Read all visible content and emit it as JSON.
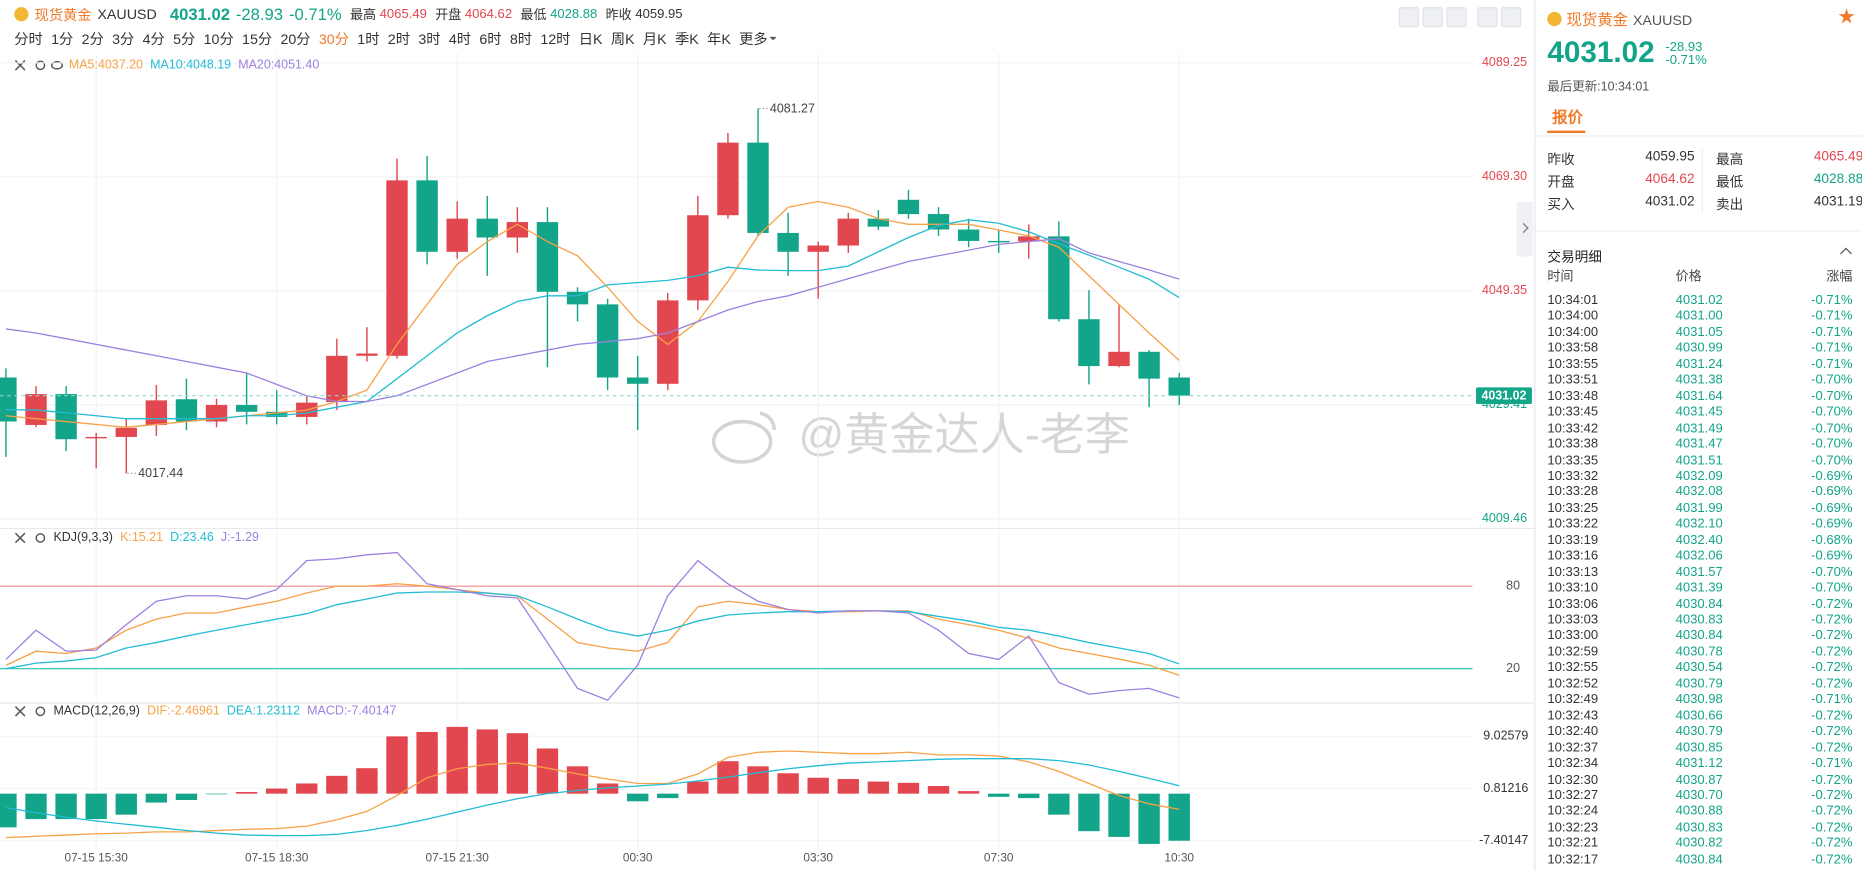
{
  "header": {
    "symbol_name": "现货黄金",
    "symbol": "XAUUSD",
    "price": "4031.02",
    "change": "-28.93",
    "change_pct": "-0.71%",
    "stats": [
      {
        "label": "最高",
        "value": "4065.49",
        "tone": "up"
      },
      {
        "label": "开盘",
        "value": "4064.62",
        "tone": "up"
      },
      {
        "label": "最低",
        "value": "4028.88",
        "tone": "down"
      },
      {
        "label": "昨收",
        "value": "4059.95",
        "tone": "flat"
      }
    ]
  },
  "timeframes": [
    {
      "label": "分时"
    },
    {
      "label": "1分"
    },
    {
      "label": "2分"
    },
    {
      "label": "3分"
    },
    {
      "label": "4分"
    },
    {
      "label": "5分"
    },
    {
      "label": "10分"
    },
    {
      "label": "15分"
    },
    {
      "label": "20分"
    },
    {
      "label": "30分",
      "active": true
    },
    {
      "label": "1时"
    },
    {
      "label": "2时"
    },
    {
      "label": "3时"
    },
    {
      "label": "4时"
    },
    {
      "label": "6时"
    },
    {
      "label": "8时"
    },
    {
      "label": "12时"
    },
    {
      "label": "日K"
    },
    {
      "label": "周K"
    },
    {
      "label": "月K"
    },
    {
      "label": "季K"
    },
    {
      "label": "年K"
    },
    {
      "label": "更多",
      "dropdown": true
    }
  ],
  "watermark": "@黄金达人-老李",
  "chart": {
    "colors": {
      "up": "#e2474f",
      "down": "#13a589"
    },
    "times": [
      null,
      null,
      null,
      "07-15 15:30",
      null,
      null,
      null,
      null,
      null,
      "07-15 18:30",
      null,
      null,
      null,
      null,
      null,
      "07-15 21:30",
      null,
      null,
      null,
      null,
      null,
      "00:30",
      null,
      null,
      null,
      null,
      null,
      "03:30",
      null,
      null,
      null,
      null,
      null,
      "07:30",
      null,
      null,
      null,
      null,
      null,
      "10:30"
    ],
    "price": {
      "ylim": [
        4007.79,
        4090.91
      ],
      "yticks": [
        4089.25,
        {
          "value": 4069.3,
          "label": "4069.30"
        },
        4049.35,
        4029.41,
        4009.46
      ],
      "candles": [
        [
          4034.2,
          4035.8,
          4020.3,
          4026.5
        ],
        [
          4025.9,
          4032.7,
          4025.5,
          4031.3
        ],
        [
          4031.3,
          4032.7,
          4021.3,
          4023.4
        ],
        [
          4023.6,
          4024.5,
          4018.3,
          4023.8
        ],
        [
          4023.8,
          4027.0,
          4017.44,
          4025.4
        ],
        [
          4025.9,
          4032.9,
          4024.0,
          4030.2
        ],
        [
          4030.4,
          4034.0,
          4025.0,
          4026.5
        ],
        [
          4026.5,
          4030.5,
          4025.5,
          4029.4
        ],
        [
          4029.4,
          4035.0,
          4026.0,
          4028.2
        ],
        [
          4028.2,
          4032.0,
          4026.0,
          4027.3
        ],
        [
          4027.3,
          4031.0,
          4026.0,
          4029.8
        ],
        [
          4029.9,
          4041.0,
          4028.5,
          4038.0
        ],
        [
          4038.0,
          4043.0,
          4037.0,
          4038.4
        ],
        [
          4038.0,
          4072.5,
          4037.5,
          4068.7
        ],
        [
          4068.7,
          4073.0,
          4054.0,
          4056.2
        ],
        [
          4056.2,
          4065.0,
          4055.0,
          4062.0
        ],
        [
          4062.0,
          4066.0,
          4052.0,
          4058.7
        ],
        [
          4058.7,
          4064.0,
          4056.0,
          4061.4
        ],
        [
          4061.4,
          4064.0,
          4036.0,
          4049.2
        ],
        [
          4049.2,
          4050.0,
          4044.0,
          4047.0
        ],
        [
          4047.0,
          4048.0,
          4032.0,
          4034.2
        ],
        [
          4034.2,
          4038.0,
          4025.0,
          4033.1
        ],
        [
          4033.1,
          4049.0,
          4032.0,
          4047.7
        ],
        [
          4047.7,
          4066.0,
          4046.0,
          4062.6
        ],
        [
          4062.6,
          4077.0,
          4062.0,
          4075.3
        ],
        [
          4075.3,
          4081.27,
          4059.0,
          4059.5
        ],
        [
          4059.5,
          4063.0,
          4052.0,
          4056.2
        ],
        [
          4056.2,
          4058.0,
          4048.0,
          4057.3
        ],
        [
          4057.3,
          4063.0,
          4056.0,
          4062.0
        ],
        [
          4062.0,
          4063.5,
          4060.0,
          4060.6
        ],
        [
          4065.3,
          4067.0,
          4062.0,
          4062.8
        ],
        [
          4062.8,
          4064.0,
          4059.0,
          4060.1
        ],
        [
          4060.1,
          4062.0,
          4057.0,
          4058.1
        ],
        [
          4058.1,
          4060.0,
          4056.0,
          4058.0
        ],
        [
          4058.0,
          4061.0,
          4055.0,
          4058.9
        ],
        [
          4058.9,
          4061.5,
          4044.0,
          4044.4
        ],
        [
          4044.4,
          4049.5,
          4033.0,
          4036.2
        ],
        [
          4036.2,
          4047.0,
          4036.0,
          4038.7
        ],
        [
          4038.7,
          4039.0,
          4029.0,
          4034.0
        ],
        [
          4034.2,
          4035.0,
          4029.4,
          4031.02
        ]
      ],
      "series": [
        {
          "name": "MA5",
          "legend": "MA5:4037.20",
          "color": "#f7a146",
          "values": [
            4027.5,
            4027,
            4026.5,
            4026,
            4025.5,
            4026,
            4026.5,
            4027,
            4027.5,
            4028,
            4028.5,
            4030,
            4032,
            4040,
            4047,
            4054,
            4058,
            4061,
            4058,
            4055.5,
            4050,
            4044,
            4040,
            4044,
            4051,
            4059,
            4064,
            4065,
            4064,
            4062,
            4061,
            4061,
            4061,
            4060,
            4059,
            4057,
            4052,
            4047,
            4042,
            4037.2
          ]
        },
        {
          "name": "MA10",
          "legend": "MA10:4048.19",
          "color": "#22bcd4",
          "values": [
            4028.6,
            4028.5,
            4028,
            4027.5,
            4027,
            4027,
            4027,
            4027,
            4027.5,
            4027.5,
            4028,
            4029,
            4030,
            4034,
            4038,
            4042,
            4045,
            4047.5,
            4048.5,
            4048.5,
            4050.4,
            4050.8,
            4051.2,
            4052,
            4053.5,
            4053,
            4052.9,
            4052.9,
            4053.7,
            4056.2,
            4058.7,
            4060.8,
            4061.8,
            4061.2,
            4059.7,
            4057.6,
            4055.6,
            4053.5,
            4051.4,
            4048.19
          ]
        },
        {
          "name": "MA20",
          "legend": "MA20:4051.40",
          "color": "#9d80e0",
          "values": [
            4042.7,
            4042,
            4041,
            4040,
            4039,
            4038,
            4037,
            4036,
            4035,
            4033,
            4031,
            4030,
            4030,
            4031,
            4033,
            4035,
            4037,
            4038,
            4039,
            4040,
            4040.5,
            4041,
            4042,
            4044,
            4046,
            4047.5,
            4048.5,
            4050,
            4051.5,
            4053,
            4054.5,
            4055.5,
            4056.5,
            4057.5,
            4058,
            4058.5,
            4056,
            4054.5,
            4053,
            4051.4
          ]
        }
      ]
    },
    "kdj": {
      "title": "KDJ(9,3,3)",
      "ylim": [
        -5,
        122
      ],
      "yticks": [
        {
          "value": 80,
          "color": "#f08a8f"
        },
        {
          "value": 20,
          "color": "#3cc7b4"
        }
      ],
      "series": [
        {
          "name": "K",
          "legend": "K:15.21",
          "color": "#f7a146",
          "values": [
            22.5,
            32.7,
            31,
            35,
            48,
            56,
            60.5,
            60.5,
            65,
            69,
            75,
            80,
            80,
            81.7,
            80,
            77.5,
            75,
            73,
            56,
            39,
            35,
            32.7,
            39,
            65,
            69,
            66.5,
            63,
            61.4,
            61.4,
            62,
            62,
            56,
            52,
            48,
            42,
            35,
            31,
            27,
            22.5,
            15.21
          ]
        },
        {
          "name": "D",
          "legend": "D:23.46",
          "color": "#22bcd4",
          "values": [
            20,
            24,
            25.5,
            28,
            35,
            39,
            43.7,
            48,
            52,
            56,
            60,
            66.5,
            70.7,
            75,
            75.8,
            75.8,
            75,
            73,
            65,
            56,
            48,
            43.7,
            48,
            54.7,
            59,
            60.5,
            61.4,
            61.4,
            62,
            62,
            61.4,
            58,
            54.7,
            50,
            48,
            43.7,
            39,
            35,
            31,
            23.46
          ]
        },
        {
          "name": "J",
          "legend": "J:-1.29",
          "color": "#9d80e0",
          "values": [
            26.7,
            48,
            32.7,
            33.5,
            52,
            69,
            73,
            73,
            70.7,
            77.5,
            98.6,
            100,
            102.8,
            104.5,
            81.7,
            77.5,
            73,
            71.5,
            39,
            5.6,
            -3,
            22.5,
            73,
            98.6,
            81.7,
            69,
            63,
            60.5,
            62,
            62,
            60.5,
            48,
            31,
            26.7,
            43.7,
            9.9,
            1.4,
            4,
            5.6,
            -1.29
          ]
        }
      ]
    },
    "macd": {
      "title": "MACD(12,26,9)",
      "ylim": [
        -8.71,
        14.25
      ],
      "yticks": [
        9.02579,
        0.81216,
        -7.40147
      ],
      "histogram": {
        "name": "MACD",
        "legend": "MACD:-7.40147",
        "color": "#9d80e0",
        "values": [
          -5.3,
          -4.0,
          -4.0,
          -4.0,
          -3.3,
          -1.4,
          -1.0,
          -0.1,
          0.26,
          0.8,
          1.6,
          2.8,
          4.0,
          9.0,
          9.7,
          10.5,
          10.1,
          9.5,
          7.1,
          4.3,
          1.6,
          -1.2,
          -0.7,
          1.9,
          5.1,
          4.3,
          3.2,
          2.5,
          2.3,
          1.9,
          1.7,
          1.2,
          0.4,
          -0.5,
          -0.7,
          -3.3,
          -5.9,
          -6.8,
          -7.9,
          -7.40147
        ]
      },
      "series": [
        {
          "name": "DIF",
          "legend": "DIF:-2.46961",
          "color": "#f7a146",
          "values": [
            -6.9,
            -6.7,
            -6.5,
            -6.3,
            -6.2,
            -6.0,
            -6.0,
            -5.8,
            -5.6,
            -5.5,
            -5.1,
            -4.1,
            -2.8,
            -0.3,
            2.5,
            3.9,
            4.6,
            4.8,
            4.0,
            3.1,
            2.3,
            1.6,
            1.6,
            3.1,
            5.7,
            6.5,
            6.7,
            6.5,
            6.3,
            6.3,
            6.5,
            6.1,
            6.1,
            5.9,
            5.0,
            3.5,
            1.6,
            -0.3,
            -1.6,
            -2.46961
          ]
        },
        {
          "name": "DEA",
          "legend": "DEA:1.23112",
          "color": "#22bcd4",
          "values": [
            -2.2,
            -3.0,
            -3.7,
            -4.3,
            -4.8,
            -5.3,
            -5.8,
            -6.2,
            -6.5,
            -6.6,
            -6.6,
            -6.4,
            -5.8,
            -5.0,
            -4.0,
            -2.9,
            -1.8,
            -0.8,
            0,
            0.5,
            0.9,
            1.2,
            1.5,
            2.0,
            2.6,
            3.3,
            3.9,
            4.4,
            4.8,
            5.0,
            5.2,
            5.4,
            5.5,
            5.5,
            5.5,
            5.2,
            4.5,
            3.5,
            2.4,
            1.23112
          ]
        }
      ]
    }
  },
  "side": {
    "symbol_name": "现货黄金",
    "symbol": "XAUUSD",
    "price": "4031.02",
    "change": "-28.93",
    "change_pct": "-0.71%",
    "last_update": "最后更新:10:34:01",
    "tab": "报价",
    "quotes": [
      [
        {
          "label": "昨收",
          "value": "4059.95",
          "tone": "flat"
        },
        {
          "label": "最高",
          "value": "4065.49",
          "tone": "up"
        }
      ],
      [
        {
          "label": "开盘",
          "value": "4064.62",
          "tone": "up"
        },
        {
          "label": "最低",
          "value": "4028.88",
          "tone": "down"
        }
      ],
      [
        {
          "label": "买入",
          "value": "4031.02",
          "tone": "flat"
        },
        {
          "label": "卖出",
          "value": "4031.19",
          "tone": "flat"
        }
      ]
    ],
    "trades_title": "交易明细",
    "trade_columns": [
      "时间",
      "价格",
      "涨幅"
    ],
    "trades": [
      [
        "10:34:01",
        "4031.02",
        "-0.71%"
      ],
      [
        "10:34:00",
        "4031.00",
        "-0.71%"
      ],
      [
        "10:34:00",
        "4031.05",
        "-0.71%"
      ],
      [
        "10:33:58",
        "4030.99",
        "-0.71%"
      ],
      [
        "10:33:55",
        "4031.24",
        "-0.71%"
      ],
      [
        "10:33:51",
        "4031.38",
        "-0.70%"
      ],
      [
        "10:33:48",
        "4031.64",
        "-0.70%"
      ],
      [
        "10:33:45",
        "4031.45",
        "-0.70%"
      ],
      [
        "10:33:42",
        "4031.49",
        "-0.70%"
      ],
      [
        "10:33:38",
        "4031.47",
        "-0.70%"
      ],
      [
        "10:33:35",
        "4031.51",
        "-0.70%"
      ],
      [
        "10:33:32",
        "4032.09",
        "-0.69%"
      ],
      [
        "10:33:28",
        "4032.08",
        "-0.69%"
      ],
      [
        "10:33:25",
        "4031.99",
        "-0.69%"
      ],
      [
        "10:33:22",
        "4032.10",
        "-0.69%"
      ],
      [
        "10:33:19",
        "4032.40",
        "-0.68%"
      ],
      [
        "10:33:16",
        "4032.06",
        "-0.69%"
      ],
      [
        "10:33:13",
        "4031.57",
        "-0.70%"
      ],
      [
        "10:33:10",
        "4031.39",
        "-0.70%"
      ],
      [
        "10:33:06",
        "4030.84",
        "-0.72%"
      ],
      [
        "10:33:03",
        "4030.83",
        "-0.72%"
      ],
      [
        "10:33:00",
        "4030.84",
        "-0.72%"
      ],
      [
        "10:32:59",
        "4030.78",
        "-0.72%"
      ],
      [
        "10:32:55",
        "4030.54",
        "-0.72%"
      ],
      [
        "10:32:52",
        "4030.79",
        "-0.72%"
      ],
      [
        "10:32:49",
        "4030.98",
        "-0.71%"
      ],
      [
        "10:32:43",
        "4030.66",
        "-0.72%"
      ],
      [
        "10:32:40",
        "4030.79",
        "-0.72%"
      ],
      [
        "10:32:37",
        "4030.85",
        "-0.72%"
      ],
      [
        "10:32:34",
        "4031.12",
        "-0.71%"
      ],
      [
        "10:32:30",
        "4030.87",
        "-0.72%"
      ],
      [
        "10:32:27",
        "4030.70",
        "-0.72%"
      ],
      [
        "10:32:24",
        "4030.88",
        "-0.72%"
      ],
      [
        "10:32:23",
        "4030.83",
        "-0.72%"
      ],
      [
        "10:32:21",
        "4030.82",
        "-0.72%"
      ],
      [
        "10:32:17",
        "4030.84",
        "-0.72%"
      ]
    ]
  }
}
